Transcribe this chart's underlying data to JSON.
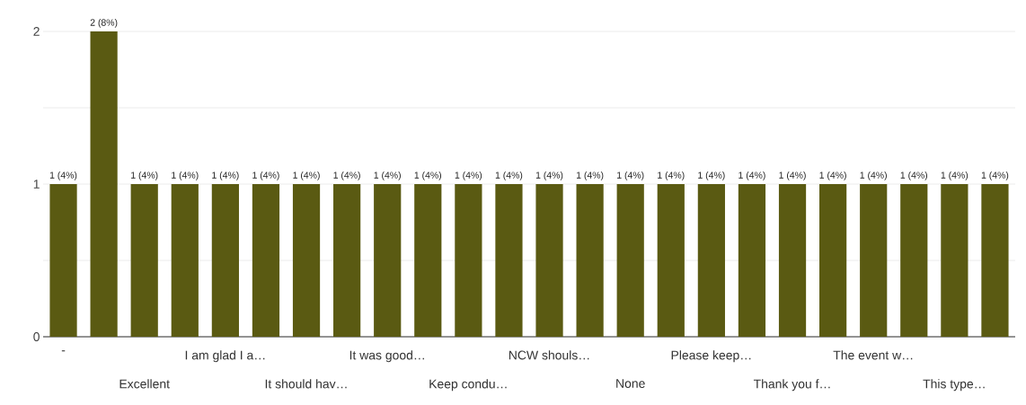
{
  "chart_data": {
    "type": "bar",
    "categories": [
      "-",
      null,
      "Excellent",
      null,
      "I am glad I a…",
      null,
      "It should hav…",
      null,
      "It was good…",
      null,
      "Keep condu…",
      null,
      "NCW shouls…",
      null,
      "None",
      null,
      "Please keep…",
      null,
      "Thank you f…",
      null,
      "The event w…",
      null,
      "This type…",
      null
    ],
    "values": [
      1,
      2,
      1,
      1,
      1,
      1,
      1,
      1,
      1,
      1,
      1,
      1,
      1,
      1,
      1,
      1,
      1,
      1,
      1,
      1,
      1,
      1,
      1,
      1
    ],
    "value_labels": [
      "1 (4%)",
      "2 (8%)",
      "1 (4%)",
      "1 (4%)",
      "1 (4%)",
      "1 (4%)",
      "1 (4%)",
      "1 (4%)",
      "1 (4%)",
      "1 (4%)",
      "1 (4%)",
      "1 (4%)",
      "1 (4%)",
      "1 (4%)",
      "1 (4%)",
      "1 (4%)",
      "1 (4%)",
      "1 (4%)",
      "1 (4%)",
      "1 (4%)",
      "1 (4%)",
      "1 (4%)",
      "1 (4%)",
      "1 (4%)"
    ],
    "color": "#5a5a12",
    "ylim": [
      0,
      2
    ],
    "yticks": [
      0,
      {
        "value": 0.5,
        "label": null
      },
      1,
      {
        "value": 1.5,
        "label": null
      },
      2
    ],
    "grid": "y"
  }
}
